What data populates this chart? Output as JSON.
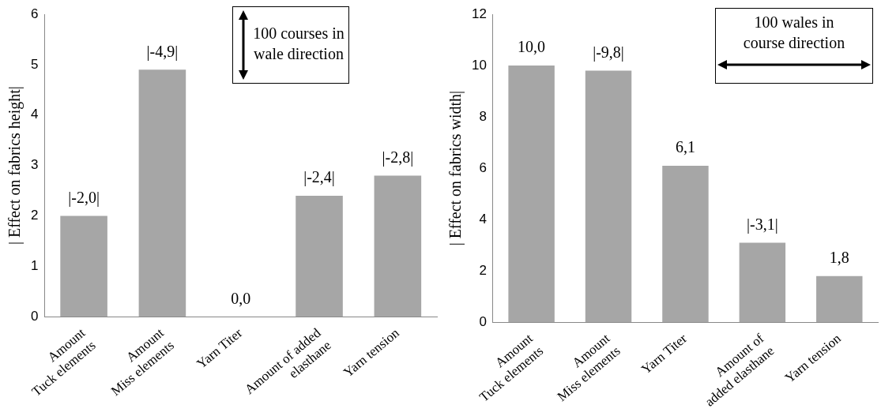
{
  "chart_data": [
    {
      "type": "bar",
      "ylabel": "| Effect on fabrics height|",
      "categories": [
        "Amount\nTuck elements",
        "Amount\nMiss elements",
        "Yarn Titer",
        "Amount of added\nelasthane",
        "Yarn tension"
      ],
      "values": [
        2.0,
        4.9,
        0.0,
        2.4,
        2.8
      ],
      "color": "#a6a6a6",
      "ylim": [
        0,
        6
      ],
      "yticks": [
        0,
        1,
        2,
        3,
        4,
        5,
        6
      ],
      "grid": false,
      "legend": false,
      "annotations": [
        "100 courses in wale direction",
        {
          "text": "|-2,0|",
          "x": "Amount\nTuck elements",
          "y": 2.0
        },
        {
          "text": "|-4,9|",
          "x": "Amount\nMiss elements",
          "y": 4.9
        },
        {
          "text": "0,0",
          "x": "Yarn Titer",
          "y": 0.0
        },
        {
          "text": "|-2,4|",
          "x": "Amount of added\nelasthane",
          "y": 2.4
        },
        {
          "text": "|-2,8|",
          "x": "Yarn tension",
          "y": 2.8
        }
      ]
    },
    {
      "type": "bar",
      "ylabel": "| Effect on fabrics width|",
      "categories": [
        "Amount\nTuck elements",
        "Amount\nMiss elements",
        "Yarn Titer",
        "Amount of\nadded elasthane",
        "Yarn tension"
      ],
      "values": [
        10.0,
        9.8,
        6.1,
        3.1,
        1.8
      ],
      "color": "#a6a6a6",
      "ylim": [
        0,
        12
      ],
      "yticks": [
        0,
        2,
        4,
        6,
        8,
        10,
        12
      ],
      "grid": false,
      "legend": false,
      "annotations": [
        "100 wales in course direction",
        {
          "text": "10,0",
          "x": "Amount\nTuck elements",
          "y": 10.0
        },
        {
          "text": "|-9,8|",
          "x": "Amount\nMiss elements",
          "y": 9.8
        },
        {
          "text": "6,1",
          "x": "Yarn Titer",
          "y": 6.1
        },
        {
          "text": "|-3,1|",
          "x": "Amount of\nadded elasthane",
          "y": 3.1
        },
        {
          "text": "1,8",
          "x": "Yarn tension",
          "y": 1.8
        }
      ]
    }
  ]
}
